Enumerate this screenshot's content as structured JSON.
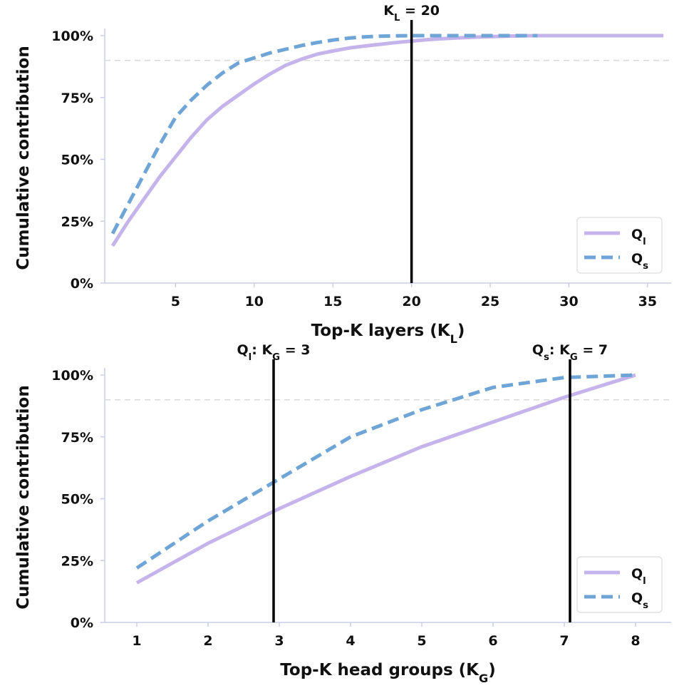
{
  "colors": {
    "Q_l": "#c5b3ec",
    "Q_s": "#6fa5d6",
    "vline": "#000000",
    "ref_line": "#d9d9d9",
    "axis": "#c8cde6"
  },
  "chart_data": [
    {
      "type": "line",
      "xlabel": "Top-K layers (K",
      "xlabel_sub": "L",
      "xlabel_tail": ")",
      "ylabel": "Cumulative contribution",
      "xlim": [
        0.5,
        36.5
      ],
      "ylim": [
        0,
        1
      ],
      "xticks": [
        5,
        10,
        15,
        20,
        25,
        30,
        35
      ],
      "yticks": [
        0,
        0.25,
        0.5,
        0.75,
        1.0
      ],
      "ytick_labels": [
        "0%",
        "25%",
        "50%",
        "75%",
        "100%"
      ],
      "reference_line_y": 0.9,
      "grid": false,
      "legend_position": "bottom-right",
      "series": [
        {
          "key": "Q_l",
          "name": "Q",
          "name_sub": "l",
          "style": "solid",
          "x": [
            1,
            2,
            3,
            4,
            5,
            6,
            7,
            8,
            9,
            10,
            11,
            12,
            13,
            14,
            15,
            16,
            17,
            18,
            19,
            20,
            21,
            22,
            23,
            24,
            25,
            26,
            27,
            28,
            29,
            30,
            31,
            32,
            33,
            34,
            35,
            36
          ],
          "values": [
            0.15,
            0.25,
            0.34,
            0.43,
            0.51,
            0.59,
            0.66,
            0.715,
            0.76,
            0.805,
            0.845,
            0.88,
            0.905,
            0.925,
            0.938,
            0.95,
            0.958,
            0.965,
            0.972,
            0.978,
            0.984,
            0.988,
            0.991,
            0.994,
            0.996,
            0.998,
            0.999,
            1.0,
            1.0,
            1.0,
            1.0,
            1.0,
            1.0,
            1.0,
            1.0,
            1.0
          ]
        },
        {
          "key": "Q_s",
          "name": "Q",
          "name_sub": "s",
          "style": "dashed",
          "x": [
            1,
            2,
            3,
            4,
            5,
            6,
            7,
            8,
            9,
            10,
            11,
            12,
            13,
            14,
            15,
            16,
            17,
            18,
            19,
            20,
            21,
            22,
            23,
            24,
            25,
            26,
            27,
            28
          ],
          "values": [
            0.2,
            0.32,
            0.44,
            0.56,
            0.67,
            0.74,
            0.8,
            0.85,
            0.89,
            0.91,
            0.93,
            0.945,
            0.96,
            0.972,
            0.982,
            0.99,
            0.995,
            0.998,
            0.999,
            1.0,
            1.0,
            1.0,
            1.0,
            1.0,
            1.0,
            1.0,
            1.0,
            1.0
          ]
        }
      ],
      "vlines": [
        {
          "x": 20,
          "label": "K",
          "label_sub": "L",
          "label_tail": " = 20"
        }
      ]
    },
    {
      "type": "line",
      "xlabel": "Top-K head groups (K",
      "xlabel_sub": "G",
      "xlabel_tail": ")",
      "ylabel": "Cumulative contribution",
      "xlim": [
        0.55,
        8.5
      ],
      "ylim": [
        0,
        1
      ],
      "xticks": [
        1,
        2,
        3,
        4,
        5,
        6,
        7,
        8
      ],
      "yticks": [
        0,
        0.25,
        0.5,
        0.75,
        1.0
      ],
      "ytick_labels": [
        "0%",
        "25%",
        "50%",
        "75%",
        "100%"
      ],
      "reference_line_y": 0.9,
      "grid": false,
      "legend_position": "bottom-right",
      "series": [
        {
          "key": "Q_l",
          "name": "Q",
          "name_sub": "l",
          "style": "solid",
          "x": [
            1,
            2,
            3,
            4,
            5,
            6,
            7,
            8
          ],
          "values": [
            0.16,
            0.32,
            0.46,
            0.59,
            0.71,
            0.81,
            0.91,
            1.0
          ]
        },
        {
          "key": "Q_s",
          "name": "Q",
          "name_sub": "s",
          "style": "dashed",
          "x": [
            1,
            2,
            3,
            4,
            5,
            6,
            7,
            8
          ],
          "values": [
            0.22,
            0.41,
            0.58,
            0.75,
            0.86,
            0.95,
            0.99,
            1.0
          ]
        }
      ],
      "vlines": [
        {
          "x": 2.92,
          "label": "Q",
          "label_sub": "l",
          "label_tail": ": K",
          "label_sub2": "G",
          "label_tail2": " = 3"
        },
        {
          "x": 7.08,
          "label": "Q",
          "label_sub": "s",
          "label_tail": ": K",
          "label_sub2": "G",
          "label_tail2": " = 7"
        }
      ]
    }
  ]
}
